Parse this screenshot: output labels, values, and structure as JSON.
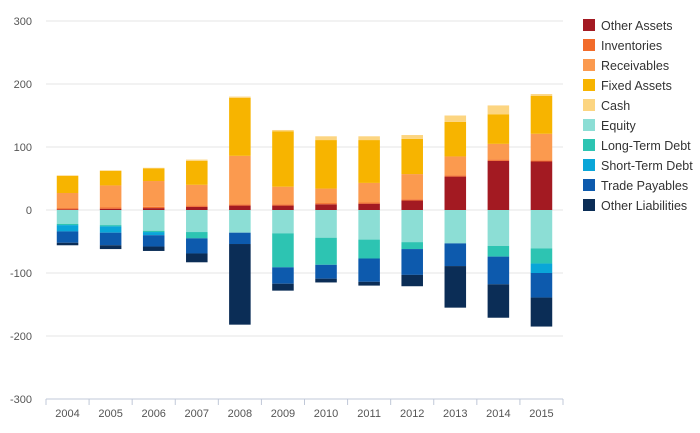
{
  "chart_data": {
    "type": "bar",
    "stacked": true,
    "categories": [
      "2004",
      "2005",
      "2006",
      "2007",
      "2008",
      "2009",
      "2010",
      "2011",
      "2012",
      "2013",
      "2014",
      "2015"
    ],
    "ylim": [
      -300,
      300
    ],
    "yticks": [
      300,
      200,
      100,
      0,
      -100,
      -200,
      -300
    ],
    "grid": true,
    "legend_position": "right",
    "series": [
      {
        "name": "Other Assets",
        "color": "#a31a22",
        "values": [
          1,
          2,
          3,
          5,
          7,
          7,
          9,
          10,
          15,
          53,
          78,
          77
        ]
      },
      {
        "name": "Inventories",
        "color": "#f26b2a",
        "values": [
          2,
          2,
          2,
          2,
          2,
          2,
          2,
          2,
          2,
          2,
          2,
          2
        ]
      },
      {
        "name": "Receivables",
        "color": "#fb9a4f",
        "values": [
          24,
          35,
          41,
          33,
          77,
          28,
          23,
          31,
          40,
          30,
          25,
          42
        ]
      },
      {
        "name": "Fixed Assets",
        "color": "#f7b400",
        "values": [
          27,
          23,
          20,
          38,
          92,
          88,
          77,
          68,
          56,
          55,
          47,
          60
        ]
      },
      {
        "name": "Cash",
        "color": "#fcd581",
        "values": [
          1,
          1,
          1,
          2,
          2,
          2,
          6,
          6,
          6,
          10,
          14,
          3
        ]
      },
      {
        "name": "Equity",
        "color": "#8cded5",
        "values": [
          -22,
          -24,
          -33,
          -35,
          -36,
          -37,
          -44,
          -47,
          -51,
          -53,
          -57,
          -61
        ]
      },
      {
        "name": "Long-Term Debt",
        "color": "#2dc4b2",
        "values": [
          -2,
          -2,
          -2,
          -10,
          0,
          -54,
          -43,
          -30,
          -11,
          0,
          -17,
          -24
        ]
      },
      {
        "name": "Short-Term Debt",
        "color": "#0aa6d8",
        "values": [
          -10,
          -10,
          -5,
          0,
          0,
          0,
          0,
          0,
          0,
          0,
          0,
          -15
        ]
      },
      {
        "name": "Trade Payables",
        "color": "#0d5aad",
        "values": [
          -18,
          -20,
          -18,
          -24,
          -18,
          -26,
          -22,
          -37,
          -41,
          -36,
          -44,
          -39
        ]
      },
      {
        "name": "Other Liabilities",
        "color": "#0b2d56",
        "values": [
          -4,
          -6,
          -7,
          -14,
          -128,
          -11,
          -6,
          -6,
          -18,
          -66,
          -53,
          -46
        ]
      }
    ]
  }
}
